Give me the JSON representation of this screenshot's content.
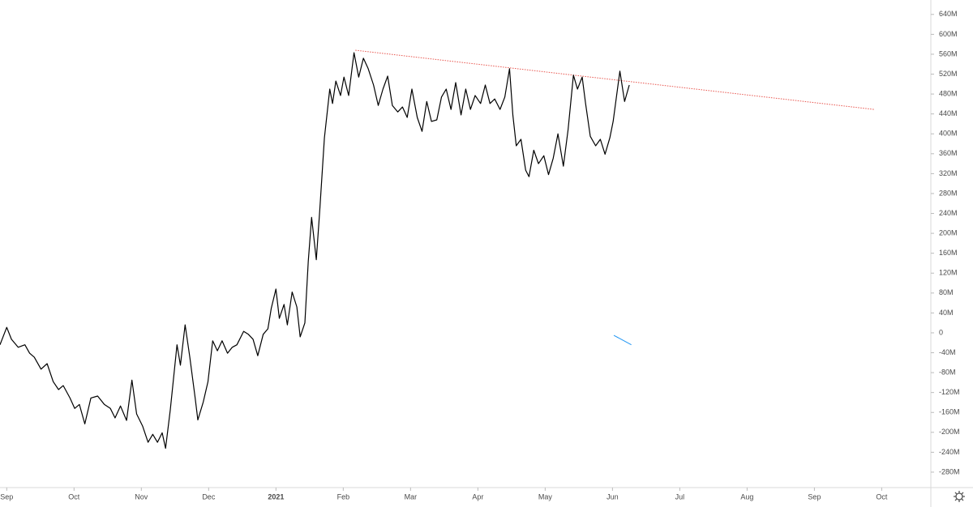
{
  "chart_data": {
    "type": "line",
    "x": [
      -0.1,
      0,
      0.07,
      0.17,
      0.27,
      0.34,
      0.41,
      0.51,
      0.6,
      0.69,
      0.77,
      0.84,
      0.94,
      1.01,
      1.08,
      1.16,
      1.25,
      1.35,
      1.45,
      1.54,
      1.61,
      1.69,
      1.78,
      1.86,
      1.93,
      2.02,
      2.1,
      2.17,
      2.24,
      2.31,
      2.36,
      2.43,
      2.53,
      2.58,
      2.65,
      2.72,
      2.8,
      2.84,
      2.92,
      2.99,
      3.06,
      3.13,
      3.2,
      3.28,
      3.35,
      3.42,
      3.52,
      3.59,
      3.66,
      3.73,
      3.81,
      3.88,
      3.93,
      4.0,
      4.05,
      4.12,
      4.17,
      4.24,
      4.31,
      4.36,
      4.43,
      4.48,
      4.53,
      4.6,
      4.65,
      4.72,
      4.8,
      4.84,
      4.89,
      4.96,
      5.01,
      5.08,
      5.16,
      5.23,
      5.3,
      5.37,
      5.45,
      5.52,
      5.59,
      5.66,
      5.73,
      5.81,
      5.88,
      5.95,
      6.02,
      6.1,
      6.17,
      6.24,
      6.31,
      6.39,
      6.46,
      6.53,
      6.6,
      6.67,
      6.75,
      6.82,
      6.89,
      6.96,
      7.04,
      7.11,
      7.18,
      7.25,
      7.33,
      7.4,
      7.47,
      7.52,
      7.57,
      7.64,
      7.71,
      7.76,
      7.83,
      7.9,
      7.98,
      8.05,
      8.12,
      8.19,
      8.27,
      8.34,
      8.42,
      8.48,
      8.55,
      8.6,
      8.67,
      8.75,
      8.82,
      8.89,
      8.96,
      9.01,
      9.11,
      9.18,
      9.25
    ],
    "series": [
      {
        "color": "#000000",
        "values": [
          -24,
          11,
          -13,
          -29,
          -24,
          -41,
          -49,
          -73,
          -62,
          -98,
          -114,
          -106,
          -131,
          -152,
          -144,
          -183,
          -131,
          -127,
          -144,
          -152,
          -171,
          -147,
          -176,
          -95,
          -163,
          -188,
          -220,
          -204,
          -220,
          -201,
          -232,
          -155,
          -24,
          -65,
          16,
          -49,
          -131,
          -175,
          -139,
          -98,
          -16,
          -36,
          -16,
          -41,
          -29,
          -24,
          3,
          -3,
          -13,
          -46,
          -3,
          8,
          49,
          88,
          29,
          57,
          16,
          82,
          52,
          -8,
          20,
          144,
          232,
          147,
          245,
          392,
          490,
          461,
          506,
          477,
          514,
          477,
          563,
          514,
          552,
          531,
          498,
          457,
          490,
          516,
          457,
          444,
          454,
          433,
          490,
          433,
          405,
          465,
          425,
          428,
          474,
          490,
          449,
          503,
          438,
          490,
          449,
          477,
          461,
          498,
          461,
          470,
          449,
          474,
          531,
          438,
          376,
          389,
          327,
          314,
          367,
          340,
          356,
          318,
          351,
          400,
          335,
          408,
          518,
          490,
          514,
          461,
          395,
          376,
          389,
          359,
          392,
          425,
          526,
          465,
          498
        ]
      }
    ],
    "trendlines": [
      {
        "color": "#e8554e",
        "x": [
          5.18,
          12.89
        ],
        "y": [
          568,
          449
        ]
      },
      {
        "color": "#2196f3",
        "x": [
          9.02,
          9.28
        ],
        "y": [
          -5,
          -24
        ]
      }
    ],
    "xlim": [
      -0.1,
      13.73
    ],
    "xticks": [
      {
        "value": 0,
        "label": "Sep"
      },
      {
        "value": 1,
        "label": "Oct"
      },
      {
        "value": 2,
        "label": "Nov"
      },
      {
        "value": 3,
        "label": "Dec"
      },
      {
        "value": 4,
        "label": "2021"
      },
      {
        "value": 5,
        "label": "Feb"
      },
      {
        "value": 6,
        "label": "Mar"
      },
      {
        "value": 7,
        "label": "Apr"
      },
      {
        "value": 8,
        "label": "May"
      },
      {
        "value": 9,
        "label": "Jun"
      },
      {
        "value": 10,
        "label": "Jul"
      },
      {
        "value": 11,
        "label": "Aug"
      },
      {
        "value": 12,
        "label": "Sep"
      },
      {
        "value": 13,
        "label": "Oct"
      }
    ],
    "ylim": [
      -311,
      669
    ],
    "yticks": [
      {
        "value": 640,
        "label": "640M"
      },
      {
        "value": 600,
        "label": "600M"
      },
      {
        "value": 560,
        "label": "560M"
      },
      {
        "value": 520,
        "label": "520M"
      },
      {
        "value": 480,
        "label": "480M"
      },
      {
        "value": 440,
        "label": "440M"
      },
      {
        "value": 400,
        "label": "400M"
      },
      {
        "value": 360,
        "label": "360M"
      },
      {
        "value": 320,
        "label": "320M"
      },
      {
        "value": 280,
        "label": "280M"
      },
      {
        "value": 240,
        "label": "240M"
      },
      {
        "value": 200,
        "label": "200M"
      },
      {
        "value": 160,
        "label": "160M"
      },
      {
        "value": 120,
        "label": "120M"
      },
      {
        "value": 80,
        "label": "80M"
      },
      {
        "value": 40,
        "label": "40M"
      },
      0,
      {
        "value": -40,
        "label": "-40M"
      },
      {
        "value": -80,
        "label": "-80M"
      },
      {
        "value": -120,
        "label": "-120M"
      },
      {
        "value": -160,
        "label": "-160M"
      },
      {
        "value": -200,
        "label": "-200M"
      },
      {
        "value": -240,
        "label": "-240M"
      },
      {
        "value": -280,
        "label": "-280M"
      }
    ],
    "grid": false
  }
}
